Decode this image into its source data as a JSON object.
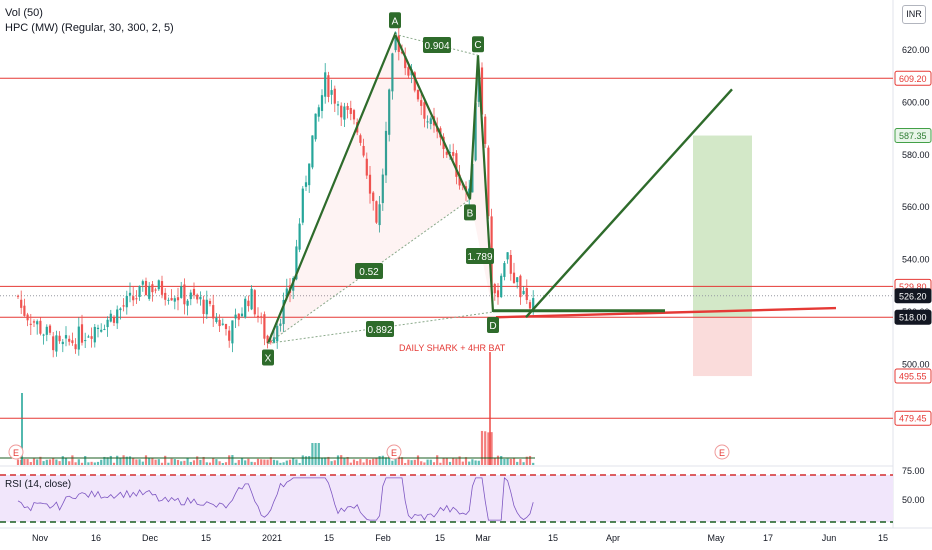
{
  "legend": {
    "volume": "Vol (50)",
    "indicator": "HPC (MW) (Regular, 30, 300, 2, 5)"
  },
  "currency": "INR",
  "colors": {
    "up": "#26a69a",
    "down": "#ef5350",
    "pattern": "#2e6b2b",
    "hline": "#e53935",
    "target_zone": "#d3e8c8",
    "stop_zone": "#fadcdb",
    "rsi_line": "#7e57c2",
    "rsi_band": "#f1e6fb"
  },
  "chart_data": {
    "type": "candlestick",
    "y_axis": {
      "range": [
        478,
        628
      ],
      "ticks": [
        "620.00",
        "600.00",
        "580.00",
        "560.00",
        "540.00",
        "520.00",
        "500.00"
      ]
    },
    "x_axis": {
      "ticks": [
        "Nov",
        "16",
        "Dec",
        "15",
        "2021",
        "15",
        "Feb",
        "15",
        "Mar",
        "15",
        "Apr",
        "May",
        "17",
        "Jun",
        "15"
      ]
    },
    "price_labels": [
      {
        "value": 609.2,
        "text": "609.20",
        "style": "red"
      },
      {
        "value": 587.35,
        "text": "587.35",
        "style": "green"
      },
      {
        "value": 529.8,
        "text": "529.80",
        "style": "red"
      },
      {
        "value": 526.2,
        "text": "526.20",
        "style": "dark"
      },
      {
        "value": 518.0,
        "text": "518.00",
        "style": "dark"
      },
      {
        "value": 495.55,
        "text": "495.55",
        "style": "red"
      },
      {
        "value": 479.45,
        "text": "479.45",
        "style": "red"
      }
    ],
    "horizontal_lines": [
      609.2,
      529.8,
      518.0,
      479.45
    ],
    "pattern_points": [
      {
        "label": "X",
        "value": 508
      },
      {
        "label": "A",
        "value": 626
      },
      {
        "label": "B",
        "value": 563
      },
      {
        "label": "C",
        "value": 618
      },
      {
        "label": "D",
        "value": 520
      }
    ],
    "ratios": [
      "0.904",
      "0.52",
      "1.789",
      "0.892"
    ],
    "annotation": "DAILY SHARK + 4HR  BAT",
    "target_price": 587.35,
    "entry_price": 518.0,
    "stop_price": 495.55,
    "earnings_markers": [
      "E",
      "E",
      "E"
    ],
    "rsi": {
      "label": "RSI (14, close)",
      "levels": [
        "75.00",
        "50.00"
      ]
    }
  }
}
